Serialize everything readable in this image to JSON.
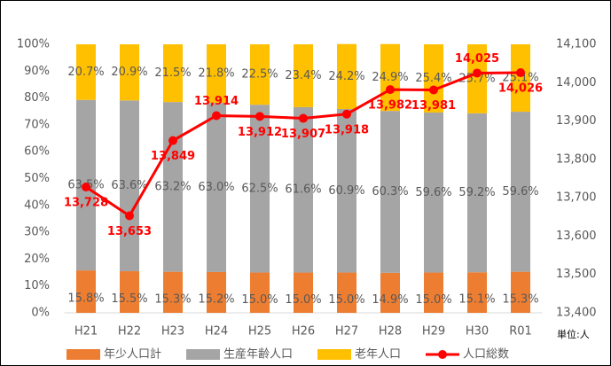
{
  "chart_data": {
    "type": "stacked_bar_line",
    "categories": [
      "H21",
      "H22",
      "H23",
      "H24",
      "H25",
      "H26",
      "H27",
      "H28",
      "H29",
      "H30",
      "R01"
    ],
    "series": [
      {
        "name": "年少人口計",
        "color": "#ed7d31",
        "values": [
          15.8,
          15.5,
          15.3,
          15.2,
          15.0,
          15.0,
          15.0,
          14.9,
          15.0,
          15.1,
          15.3
        ],
        "value_labels": [
          "15.8%",
          "15.5%",
          "15.3%",
          "15.2%",
          "15.0%",
          "15.0%",
          "15.0%",
          "14.9%",
          "15.0%",
          "15.1%",
          "15.3%"
        ]
      },
      {
        "name": "生産年齢人口",
        "color": "#a5a5a5",
        "values": [
          63.5,
          63.6,
          63.2,
          63.0,
          62.5,
          61.6,
          60.9,
          60.3,
          59.6,
          59.2,
          59.6
        ],
        "value_labels": [
          "63.5%",
          "63.6%",
          "63.2%",
          "63.0%",
          "62.5%",
          "61.6%",
          "60.9%",
          "60.3%",
          "59.6%",
          "59.2%",
          "59.6%"
        ]
      },
      {
        "name": "老年人口",
        "color": "#ffc000",
        "values": [
          20.7,
          20.9,
          21.5,
          21.8,
          22.5,
          23.4,
          24.2,
          24.9,
          25.4,
          25.7,
          25.1
        ],
        "value_labels": [
          "20.7%",
          "20.9%",
          "21.5%",
          "21.8%",
          "22.5%",
          "23.4%",
          "24.2%",
          "24.9%",
          "25.4%",
          "25.7%",
          "25.1%"
        ]
      },
      {
        "name": "人口総数",
        "color": "#ff0000",
        "axis": "y2",
        "type": "line",
        "values": [
          13728,
          13653,
          13849,
          13914,
          13912,
          13907,
          13918,
          13982,
          13981,
          14025,
          14026
        ],
        "value_labels": [
          "13,728",
          "13,653",
          "13,849",
          "13,914",
          "13,912",
          "13,907",
          "13,918",
          "13,982",
          "13,981",
          "14,025",
          "14,026"
        ]
      }
    ],
    "ylim": [
      0,
      100
    ],
    "yticks": [
      {
        "value": 0,
        "label": "0%"
      },
      {
        "value": 10,
        "label": "10%"
      },
      {
        "value": 20,
        "label": "20%"
      },
      {
        "value": 30,
        "label": "30%"
      },
      {
        "value": 40,
        "label": "40%"
      },
      {
        "value": 50,
        "label": "50%"
      },
      {
        "value": 60,
        "label": "60%"
      },
      {
        "value": 70,
        "label": "70%"
      },
      {
        "value": 80,
        "label": "80%"
      },
      {
        "value": 90,
        "label": "90%"
      },
      {
        "value": 100,
        "label": "100%"
      }
    ],
    "y2lim": [
      13400,
      14100
    ],
    "y2ticks": [
      {
        "value": 13400,
        "label": "13,400"
      },
      {
        "value": 13500,
        "label": "13,500"
      },
      {
        "value": 13600,
        "label": "13,600"
      },
      {
        "value": 13700,
        "label": "13,700"
      },
      {
        "value": 13800,
        "label": "13,800"
      },
      {
        "value": 13900,
        "label": "13,900"
      },
      {
        "value": 14000,
        "label": "14,000"
      },
      {
        "value": 14100,
        "label": "14,100"
      }
    ],
    "y2_unit": "単位:人",
    "legend": "bottom"
  }
}
